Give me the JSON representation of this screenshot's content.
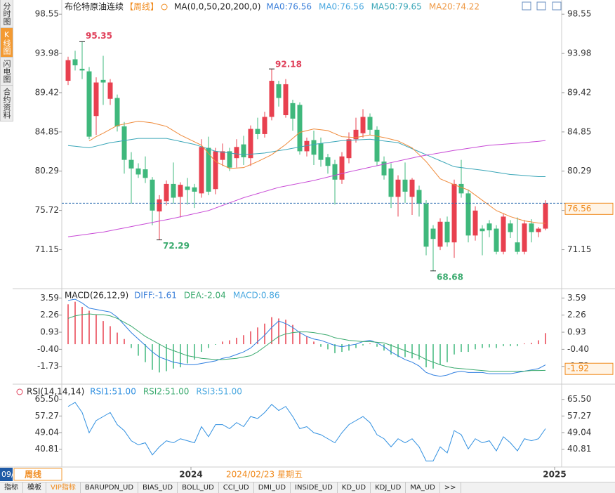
{
  "ui": {
    "side_tabs": [
      "分时图",
      "K线图",
      "闪电图",
      "合约资料"
    ],
    "bottom_tabs": [
      "指标",
      "模板",
      "VIP指标",
      "BARUPDN_UD",
      "BIAS_UD",
      "BOLL_UD",
      "CCI_UD",
      "DMI_UD",
      "INSIDE_UD",
      "KD_UD",
      "KDJ_UD",
      "MA_UD",
      ">>"
    ],
    "edge": "09/",
    "period_box": "周线",
    "cursor_date": "2024/02/23 星期五"
  },
  "chart_data": [
    {
      "type": "candlestick",
      "title": "布伦特原油连续",
      "period": "【周线】",
      "ma_label": "MA(0,0,50,20,200,0)",
      "readouts": [
        {
          "text": "MA0:76.56",
          "color": "#3b7fd9"
        },
        {
          "text": "MA0:76.56",
          "color": "#4aa8e0"
        },
        {
          "text": "MA50:79.65",
          "color": "#3aa6b8"
        },
        {
          "text": "MA20:74.22",
          "color": "#ef9a46"
        }
      ],
      "up_color": "#e8404f",
      "down_color": "#3fb87c",
      "open": [
        90.8,
        93.3,
        92.2,
        91.9,
        86.7,
        90.9,
        88.7,
        88.8,
        85.5,
        81.6,
        80.6,
        80.5,
        79.3,
        75.6,
        76.8,
        78.8,
        77.3,
        78.5,
        78.4,
        77.7,
        83.0,
        78.2,
        81.6,
        82.6,
        81.8,
        83.4,
        81.8,
        85.2,
        84.6,
        86.6,
        90.4,
        86.8,
        88.2,
        88.0,
        82.6,
        83.9,
        83.5,
        81.9,
        81.1,
        79.3,
        81.8,
        84.0,
        84.7,
        86.6,
        85.1,
        81.4,
        80.6,
        77.3,
        79.3,
        77.3,
        78.1,
        76.5,
        73.6,
        71.5,
        74.4,
        72.0,
        78.8,
        77.7,
        72.8,
        73.6,
        74.2,
        73.6,
        70.9,
        74.2,
        72.0,
        70.9,
        74.2,
        73.2,
        73.6
      ],
      "high": [
        93.6,
        94.3,
        95.35,
        92.4,
        91.2,
        93.7,
        91.0,
        89.2,
        86.0,
        82.5,
        81.2,
        82.0,
        79.6,
        77.5,
        79.2,
        81.3,
        79.0,
        79.5,
        78.8,
        84.0,
        84.3,
        83.0,
        83.5,
        83.0,
        84.0,
        84.4,
        85.6,
        86.5,
        87.2,
        92.18,
        90.8,
        91.0,
        88.6,
        88.3,
        84.2,
        85.0,
        84.2,
        82.3,
        81.6,
        82.5,
        84.8,
        86.5,
        87.5,
        87.0,
        85.5,
        82.0,
        81.2,
        79.8,
        81.3,
        79.5,
        78.6,
        76.9,
        74.0,
        74.8,
        75.0,
        79.3,
        81.6,
        78.1,
        76.2,
        74.0,
        74.6,
        74.0,
        75.4,
        74.6,
        74.9,
        74.6,
        74.7,
        73.8,
        76.9
      ],
      "low": [
        90.3,
        92.0,
        91.0,
        84.0,
        84.5,
        88.0,
        88.0,
        84.9,
        80.0,
        76.5,
        79.5,
        78.9,
        74.0,
        72.29,
        76.3,
        76.5,
        74.9,
        76.4,
        76.0,
        77.2,
        77.5,
        77.6,
        80.9,
        80.3,
        80.7,
        81.0,
        80.9,
        84.0,
        84.2,
        86.2,
        87.8,
        86.5,
        85.0,
        82.2,
        82.0,
        81.0,
        80.8,
        80.0,
        76.4,
        78.8,
        81.2,
        83.6,
        84.2,
        84.5,
        80.9,
        79.3,
        76.0,
        75.0,
        76.6,
        75.2,
        75.0,
        70.5,
        68.68,
        71.1,
        71.5,
        70.2,
        77.2,
        72.0,
        72.2,
        70.5,
        72.6,
        70.6,
        70.6,
        72.5,
        70.6,
        70.6,
        72.0,
        72.6,
        73.4
      ],
      "close": [
        93.2,
        92.6,
        92.0,
        84.3,
        90.6,
        90.6,
        90.6,
        85.5,
        81.6,
        80.6,
        79.9,
        79.5,
        75.7,
        77.0,
        78.8,
        77.2,
        78.7,
        78.1,
        77.9,
        83.1,
        77.9,
        82.6,
        82.6,
        80.7,
        83.1,
        81.9,
        85.2,
        84.6,
        86.6,
        90.8,
        88.8,
        90.4,
        86.4,
        82.6,
        83.8,
        82.2,
        81.6,
        80.9,
        79.3,
        82.0,
        84.0,
        85.1,
        86.6,
        85.1,
        81.4,
        79.8,
        77.3,
        79.3,
        77.9,
        79.3,
        76.5,
        71.5,
        72.4,
        74.4,
        72.0,
        78.8,
        77.7,
        72.8,
        75.7,
        73.3,
        73.4,
        70.9,
        75.0,
        73.2,
        70.9,
        74.2,
        73.2,
        73.6,
        76.56
      ],
      "series": [
        {
          "color": "#3aa6b8",
          "values": [
            83.27,
            83.18,
            83.09,
            83.0,
            83.2,
            83.4,
            83.6,
            83.72,
            83.85,
            83.97,
            84.09,
            84.09,
            84.09,
            84.09,
            84.09,
            83.92,
            83.75,
            83.57,
            83.4,
            83.13,
            82.87,
            82.6,
            82.5,
            82.4,
            82.3,
            82.2,
            82.27,
            82.33,
            82.4,
            82.53,
            82.67,
            82.8,
            82.95,
            83.1,
            83.25,
            83.4,
            83.51,
            83.62,
            83.73,
            83.84,
            83.88,
            83.92,
            83.96,
            84.0,
            83.9,
            83.8,
            83.7,
            83.6,
            83.25,
            82.9,
            82.55,
            82.2,
            81.85,
            81.5,
            81.15,
            80.8,
            80.7,
            80.6,
            80.5,
            80.4,
            80.28,
            80.15,
            80.03,
            79.9,
            79.84,
            79.78,
            79.71,
            79.65,
            79.65
          ]
        },
        {
          "color": "#ef8a3a",
          "values": [
            null,
            null,
            null,
            83.8,
            84.3,
            84.7,
            85.15,
            85.6,
            85.77,
            85.93,
            86.1,
            86.0,
            85.9,
            85.7,
            85.5,
            85.0,
            84.5,
            84.1,
            83.7,
            83.3,
            82.35,
            81.4,
            81.0,
            80.6,
            80.65,
            80.7,
            81.05,
            81.4,
            81.8,
            82.2,
            82.8,
            83.4,
            84.1,
            84.8,
            85.0,
            85.2,
            85.1,
            85.0,
            84.65,
            84.3,
            84.25,
            84.2,
            84.35,
            84.5,
            84.35,
            84.2,
            84.0,
            83.8,
            83.4,
            83.0,
            82.2,
            81.4,
            80.4,
            79.4,
            79.05,
            78.7,
            78.4,
            78.1,
            77.5,
            76.9,
            76.3,
            75.7,
            75.35,
            75.0,
            74.75,
            74.5,
            74.38,
            74.25,
            74.22
          ]
        },
        {
          "color": "#c84ad6",
          "values": [
            72.65,
            72.76,
            72.87,
            72.98,
            73.09,
            73.2,
            73.36,
            73.52,
            73.68,
            73.84,
            74.0,
            74.16,
            74.32,
            74.48,
            74.64,
            74.8,
            74.98,
            75.16,
            75.34,
            75.52,
            75.7,
            76.0,
            76.3,
            76.6,
            76.9,
            77.2,
            77.44,
            77.68,
            77.92,
            78.16,
            78.4,
            78.56,
            78.72,
            78.88,
            79.04,
            79.2,
            79.4,
            79.6,
            79.8,
            80.0,
            80.2,
            80.38,
            80.56,
            80.74,
            80.92,
            81.1,
            81.28,
            81.46,
            81.64,
            81.82,
            82.0,
            82.14,
            82.28,
            82.42,
            82.56,
            82.7,
            82.82,
            82.94,
            83.06,
            83.18,
            83.3,
            83.36,
            83.42,
            83.48,
            83.54,
            83.6,
            83.68,
            83.76,
            83.85
          ]
        }
      ],
      "last_price": 76.56,
      "ylim": [
        66.7,
        100.2
      ],
      "yticks": [
        98.55,
        93.98,
        89.42,
        84.85,
        80.29,
        75.72,
        71.15
      ]
    },
    {
      "type": "macd",
      "title": "MACD(26,12,9)",
      "readouts": [
        {
          "text": "DIFF:-1.61",
          "color": "#3b7fd9"
        },
        {
          "text": "DEA:-2.04",
          "color": "#3aaa6e"
        },
        {
          "text": "MACD:0.86",
          "color": "#4aa8e0"
        }
      ],
      "up_color": "#e8404f",
      "down_color": "#3fb87c",
      "histogram": [
        3.1,
        3.3,
        2.9,
        2.6,
        2.3,
        1.8,
        1.4,
        0.9,
        0.4,
        -0.3,
        -0.9,
        -1.4,
        -2.0,
        -2.2,
        -2.1,
        -1.9,
        -1.8,
        -1.5,
        -1.2,
        -0.6,
        -0.3,
        -0.05,
        0.2,
        0.3,
        0.5,
        0.7,
        1.0,
        1.3,
        1.6,
        2.1,
        2.0,
        1.9,
        1.5,
        1.0,
        0.6,
        0.2,
        -0.2,
        -0.4,
        -0.7,
        -0.6,
        -0.5,
        -0.3,
        -0.1,
        0.05,
        -0.2,
        -0.5,
        -0.8,
        -1.0,
        -1.0,
        -1.1,
        -1.2,
        -1.8,
        -1.9,
        -1.6,
        -1.4,
        -0.8,
        -0.6,
        -0.6,
        -0.4,
        -0.3,
        -0.25,
        -0.3,
        -0.15,
        -0.15,
        -0.15,
        0.05,
        0.1,
        0.3,
        0.86
      ],
      "series": [
        {
          "color": "#2f7fe0",
          "values": [
            3.4,
            3.5,
            3.2,
            2.8,
            2.7,
            2.6,
            2.5,
            2.1,
            1.5,
            0.9,
            0.4,
            -0.1,
            -0.6,
            -1.0,
            -1.2,
            -1.4,
            -1.5,
            -1.6,
            -1.6,
            -1.5,
            -1.4,
            -1.3,
            -1.1,
            -1.0,
            -0.8,
            -0.6,
            -0.3,
            0.2,
            0.7,
            1.3,
            1.8,
            1.6,
            1.3,
            0.9,
            0.6,
            0.4,
            0.3,
            0.1,
            -0.1,
            -0.2,
            -0.1,
            0.0,
            0.2,
            0.3,
            0.1,
            -0.2,
            -0.6,
            -0.9,
            -1.2,
            -1.4,
            -1.7,
            -2.2,
            -2.4,
            -2.5,
            -2.4,
            -2.2,
            -2.1,
            -2.2,
            -2.2,
            -2.2,
            -2.3,
            -2.3,
            -2.3,
            -2.3,
            -2.2,
            -2.1,
            -2.0,
            -1.9,
            -1.61
          ]
        },
        {
          "color": "#3aaa6e",
          "values": [
            2.0,
            2.2,
            2.3,
            2.35,
            2.3,
            2.3,
            2.2,
            2.0,
            1.7,
            1.4,
            1.0,
            0.6,
            0.3,
            0.0,
            -0.3,
            -0.5,
            -0.7,
            -0.9,
            -1.0,
            -1.1,
            -1.15,
            -1.2,
            -1.2,
            -1.15,
            -1.1,
            -1.0,
            -0.9,
            -0.6,
            -0.2,
            0.2,
            0.6,
            0.8,
            0.9,
            0.95,
            0.95,
            0.9,
            0.8,
            0.7,
            0.5,
            0.4,
            0.3,
            0.25,
            0.2,
            0.2,
            0.15,
            0.1,
            -0.1,
            -0.3,
            -0.5,
            -0.7,
            -0.9,
            -1.2,
            -1.4,
            -1.6,
            -1.75,
            -1.85,
            -1.9,
            -1.95,
            -2.0,
            -2.05,
            -2.1,
            -2.1,
            -2.1,
            -2.1,
            -2.1,
            -2.1,
            -2.05,
            -2.05,
            -2.04
          ]
        }
      ],
      "current": -1.92,
      "ylim": [
        -3.0,
        4.1
      ],
      "yticks": [
        3.59,
        2.26,
        0.93,
        {
          "value": -0.4,
          "label": "-0.40"
        },
        -1.73
      ]
    },
    {
      "type": "line",
      "title": "RSI(14,14,14)",
      "readouts": [
        {
          "text": "RSI1:51.00",
          "color": "#2f8fe0"
        },
        {
          "text": "RSI2:51.00",
          "color": "#3aaa6e"
        },
        {
          "text": "RSI3:51.00",
          "color": "#4aa8e0"
        }
      ],
      "series": [
        {
          "color": "#2f8fe0",
          "values": [
            62,
            64,
            59,
            49,
            55,
            57,
            59,
            53,
            50,
            45,
            43,
            44,
            38,
            42,
            45,
            44,
            46,
            45,
            44,
            52,
            47,
            53,
            53,
            51,
            54,
            52,
            57,
            56,
            59,
            63,
            60,
            62,
            57,
            51,
            52,
            49,
            48,
            46,
            44,
            49,
            53,
            55,
            57,
            54,
            48,
            46,
            42,
            46,
            44,
            46,
            42,
            35,
            35,
            42,
            39,
            50,
            48,
            41,
            46,
            44,
            45,
            40,
            47,
            44,
            40,
            46,
            45,
            46,
            51
          ]
        }
      ],
      "ylim": [
        32,
        72
      ],
      "yticks": [
        {
          "value": 65.5,
          "label": "65.50"
        },
        57.27,
        49.04,
        40.81
      ],
      "xticks": [
        {
          "value": 17.5,
          "label": "2024"
        },
        {
          "value": 69.3,
          "label": "2025"
        }
      ]
    }
  ]
}
